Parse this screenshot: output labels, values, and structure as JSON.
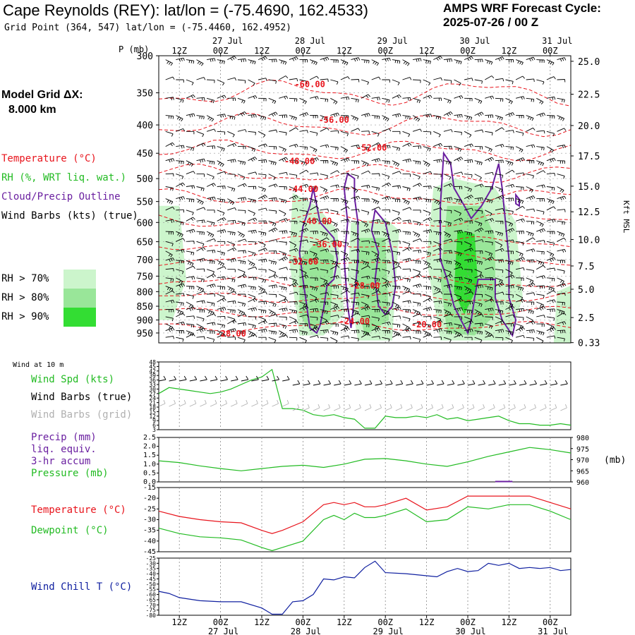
{
  "header": {
    "title": "Cape Reynolds (REY):  lat/lon = (-75.4690, 162.4533)",
    "subtitle": "Grid Point (364, 547) lat/lon = (-75.4460, 162.4952)",
    "cycle_label": "AMPS WRF Forecast Cycle:",
    "cycle_value": "2025-07-26 / 00  Z"
  },
  "left_panel": {
    "grid_label": "Model Grid ΔX:",
    "grid_value": "8.000 km",
    "legend": [
      {
        "label": "Temperature (°C)",
        "color": "#e8141c"
      },
      {
        "label": "RH (%, WRT liq. wat.)",
        "color": "#22bb22"
      },
      {
        "label": "Cloud/Precip Outline",
        "color": "#6a1fa0"
      },
      {
        "label": "Wind Barbs (kts) (true)",
        "color": "#000000"
      }
    ],
    "rh_levels": [
      {
        "label": "RH > 70%",
        "color": "#ccf5cc"
      },
      {
        "label": "RH > 80%",
        "color": "#99e699"
      },
      {
        "label": "RH > 90%",
        "color": "#33dd33"
      }
    ]
  },
  "colors": {
    "temp": "#e8141c",
    "rh": "#22bb22",
    "cloud": "#6a1fa0",
    "windchill": "#1020a0",
    "grid_barb": "#b0b0b0"
  },
  "chart_data": [
    {
      "type": "heatmap",
      "name": "time-height cross section",
      "ylabel": "P (mb)",
      "y2label": "Kft MSL",
      "p_ticks": [
        300,
        350,
        400,
        450,
        500,
        550,
        600,
        650,
        700,
        750,
        800,
        850,
        900,
        950
      ],
      "kft_ticks": [
        "25.0",
        "22.5",
        "20.0",
        "17.5",
        "15.0",
        "12.5",
        "10.0",
        "7.5",
        "5.0",
        "2.5",
        "0.33"
      ],
      "kft_at_p": [
        307,
        352,
        401,
        455,
        516,
        574,
        644,
        719,
        792,
        891,
        989
      ],
      "ylim": [
        300,
        990
      ],
      "xlim": [
        6,
        126
      ],
      "x_ticks_hours": [
        12,
        24,
        36,
        48,
        60,
        72,
        84,
        96,
        108,
        120
      ],
      "x_tick_labels": [
        "12Z",
        "00Z",
        "12Z",
        "00Z",
        "12Z",
        "00Z",
        "12Z",
        "00Z",
        "12Z",
        "00Z"
      ],
      "date_labels": [
        {
          "hour": 24,
          "text": "27 Jul"
        },
        {
          "hour": 48,
          "text": "28 Jul"
        },
        {
          "hour": 72,
          "text": "29 Jul"
        },
        {
          "hour": 96,
          "text": "30 Jul"
        },
        {
          "hour": 120,
          "text": "31 Jul"
        }
      ],
      "temperature_labels": [
        {
          "hour": 50,
          "p": 338,
          "text": "-60.00"
        },
        {
          "hour": 57,
          "p": 392,
          "text": "-56.00"
        },
        {
          "hour": 68,
          "p": 440,
          "text": "-52.00"
        },
        {
          "hour": 47,
          "p": 465,
          "text": "-48.00"
        },
        {
          "hour": 48,
          "p": 522,
          "text": "-44.00"
        },
        {
          "hour": 52,
          "p": 597,
          "text": "-40.00"
        },
        {
          "hour": 55,
          "p": 658,
          "text": "-36.00"
        },
        {
          "hour": 48,
          "p": 707,
          "text": "-32.00"
        },
        {
          "hour": 66,
          "p": 781,
          "text": "-28.00"
        },
        {
          "hour": 27,
          "p": 953,
          "text": "-28.00"
        },
        {
          "hour": 63,
          "p": 905,
          "text": "-24.00"
        },
        {
          "hour": 84,
          "p": 917,
          "text": "-20.00"
        }
      ]
    },
    {
      "type": "line",
      "name": "Wind at 10 m",
      "panel_title": "Wind at 10 m",
      "labels": [
        "Wind Spd (kts)",
        "Wind Barbs (true)",
        "Wind Barbs (grid)"
      ],
      "y_ticks": [
        3,
        6,
        9,
        12,
        15,
        18,
        21,
        24,
        27,
        30,
        33,
        36,
        39,
        42,
        45,
        48
      ],
      "ylim": [
        3,
        48
      ],
      "x": [
        6,
        9,
        12,
        15,
        18,
        21,
        24,
        27,
        30,
        33,
        36,
        39,
        42,
        45,
        48,
        51,
        54,
        57,
        60,
        63,
        66,
        69,
        72,
        75,
        78,
        81,
        84,
        87,
        90,
        93,
        96,
        99,
        102,
        105,
        108,
        111,
        114,
        117,
        120,
        123,
        126
      ],
      "wind_speed": [
        27,
        31,
        30,
        29,
        28,
        27,
        28,
        30,
        33,
        36,
        38,
        43,
        17,
        17,
        16,
        13,
        12,
        13,
        11,
        10,
        4,
        4,
        12,
        11,
        11,
        12,
        11,
        13,
        10,
        11,
        9,
        10,
        11,
        12,
        9,
        7,
        7,
        6,
        6,
        7,
        6
      ]
    },
    {
      "type": "line",
      "name": "Precip and pressure",
      "labels": [
        "Precip (mm)",
        "liq. equiv.",
        "3-hr accum",
        "Pressure (mb)"
      ],
      "y_ticks_left": [
        "0.0",
        "0.5",
        "1.0",
        "1.5",
        "2.0",
        "2.5"
      ],
      "y_ticks_right": [
        960,
        965,
        970,
        975,
        980
      ],
      "y2label": "(mb)",
      "ylim_precip": [
        0,
        2.5
      ],
      "ylim_pressure": [
        960,
        980
      ],
      "x": [
        6,
        12,
        18,
        24,
        30,
        36,
        42,
        48,
        54,
        60,
        66,
        72,
        78,
        84,
        90,
        96,
        102,
        108,
        114,
        120,
        126
      ],
      "pressure": [
        969.5,
        968.7,
        967.2,
        966.0,
        965.0,
        966.0,
        967.0,
        967.5,
        966.5,
        968.0,
        970.2,
        970.5,
        969.5,
        968.0,
        967.0,
        969.0,
        971.5,
        973.5,
        975.5,
        974.5,
        973.0
      ],
      "precip_x": [
        104,
        105,
        106,
        107,
        108,
        109
      ],
      "precip": [
        0.02,
        0.02,
        0.02,
        0.02,
        0.02,
        0.02
      ]
    },
    {
      "type": "line",
      "name": "Temperature and dewpoint",
      "labels": [
        "Temperature (°C)",
        "Dewpoint (°C)"
      ],
      "y_ticks": [
        -45,
        -40,
        -35,
        -30,
        -25,
        -20,
        -15
      ],
      "ylim": [
        -45,
        -15
      ],
      "x": [
        6,
        12,
        18,
        24,
        30,
        36,
        39,
        42,
        48,
        54,
        57,
        60,
        63,
        66,
        69,
        72,
        78,
        84,
        90,
        96,
        102,
        108,
        114,
        120,
        126
      ],
      "temperature": [
        -26,
        -28.5,
        -30,
        -31,
        -31.5,
        -35,
        -36.5,
        -35,
        -31,
        -23,
        -22,
        -23,
        -22,
        -24,
        -24,
        -23,
        -20,
        -25.5,
        -24,
        -19,
        -19,
        -19,
        -19,
        -22,
        -25
      ],
      "dewpoint": [
        -34,
        -36.5,
        -38,
        -38.5,
        -39.5,
        -43,
        -44.5,
        -43,
        -40,
        -30,
        -28,
        -30,
        -27,
        -29,
        -29,
        -28,
        -25,
        -31,
        -30,
        -24,
        -25,
        -23,
        -23,
        -26,
        -30
      ]
    },
    {
      "type": "line",
      "name": "Wind Chill",
      "labels": [
        "Wind Chill T (°C)"
      ],
      "y_ticks": [
        -80,
        -75,
        -70,
        -65,
        -60,
        -55,
        -50,
        -45,
        -40,
        -35,
        -30,
        -25
      ],
      "ylim": [
        -80,
        -25
      ],
      "x": [
        6,
        9,
        12,
        18,
        24,
        30,
        36,
        39,
        42,
        45,
        48,
        51,
        54,
        57,
        60,
        63,
        66,
        69,
        72,
        78,
        84,
        87,
        90,
        93,
        96,
        99,
        102,
        105,
        108,
        111,
        114,
        117,
        120,
        123,
        126
      ],
      "wind_chill": [
        -57,
        -59,
        -63,
        -66,
        -67,
        -67,
        -73,
        -79,
        -79,
        -67,
        -66,
        -60,
        -45,
        -46,
        -43,
        -44,
        -34,
        -28,
        -39,
        -40,
        -42,
        -43,
        -38,
        -35,
        -38,
        -37,
        -30,
        -32,
        -30,
        -35,
        -34,
        -35,
        -34,
        -37,
        -36
      ]
    }
  ]
}
